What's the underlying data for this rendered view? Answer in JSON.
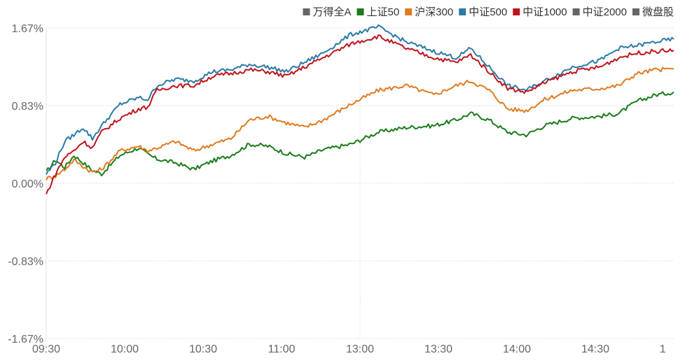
{
  "chart_data": {
    "type": "line",
    "x_ticks": [
      "09:30",
      "10:00",
      "10:30",
      "11:00",
      "13:00",
      "13:30",
      "14:00",
      "14:30",
      "1"
    ],
    "y_ticks": [
      "1.67%",
      "0.83%",
      "0.00%",
      "-0.83%",
      "-1.67%"
    ],
    "ylim": [
      -1.67,
      1.67
    ],
    "grid": "horizontal dotted",
    "legend_placement": "top-right",
    "legend": [
      {
        "name": "万得全A",
        "color": "#666666"
      },
      {
        "name": "上证50",
        "color": "#1a7d1a"
      },
      {
        "name": "沪深300",
        "color": "#e07b20"
      },
      {
        "name": "中证500",
        "color": "#2c7aa6"
      },
      {
        "name": "中证1000",
        "color": "#c0141c"
      },
      {
        "name": "中证2000",
        "color": "#666666"
      },
      {
        "name": "微盘股",
        "color": "#666666"
      }
    ],
    "series": [
      {
        "name": "上证50",
        "color": "#1a7d1a",
        "x": [
          0,
          5,
          10,
          15,
          20,
          25,
          30,
          40,
          50,
          55,
          60,
          70,
          80,
          90,
          100,
          110,
          120,
          130,
          140,
          150,
          165,
          180,
          195,
          210,
          222,
          230,
          240,
          250,
          260,
          270,
          285,
          300,
          310,
          320,
          330,
          340
        ],
        "values": [
          0.12,
          0.25,
          0.17,
          0.3,
          0.22,
          0.14,
          0.1,
          0.3,
          0.38,
          0.31,
          0.26,
          0.22,
          0.15,
          0.24,
          0.3,
          0.42,
          0.4,
          0.32,
          0.28,
          0.36,
          0.42,
          0.55,
          0.6,
          0.62,
          0.68,
          0.75,
          0.68,
          0.55,
          0.52,
          0.62,
          0.7,
          0.72,
          0.75,
          0.88,
          0.95,
          0.98
        ]
      },
      {
        "name": "沪深300",
        "color": "#e07b20",
        "x": [
          0,
          5,
          10,
          15,
          20,
          25,
          30,
          40,
          50,
          55,
          60,
          70,
          80,
          90,
          100,
          110,
          120,
          130,
          140,
          150,
          165,
          180,
          195,
          210,
          222,
          230,
          240,
          250,
          260,
          270,
          285,
          300,
          310,
          320,
          330,
          340
        ],
        "values": [
          0.05,
          0.08,
          0.15,
          0.25,
          0.18,
          0.12,
          0.15,
          0.35,
          0.4,
          0.35,
          0.38,
          0.45,
          0.35,
          0.42,
          0.48,
          0.68,
          0.72,
          0.65,
          0.6,
          0.68,
          0.85,
          1.0,
          1.05,
          0.95,
          1.05,
          1.1,
          1.0,
          0.8,
          0.78,
          0.9,
          1.0,
          1.02,
          1.05,
          1.18,
          1.22,
          1.23
        ]
      },
      {
        "name": "中证500",
        "color": "#2c7aa6",
        "x": [
          0,
          5,
          10,
          15,
          20,
          25,
          30,
          40,
          50,
          55,
          60,
          70,
          80,
          90,
          100,
          110,
          120,
          130,
          140,
          150,
          165,
          180,
          195,
          210,
          222,
          230,
          240,
          250,
          260,
          270,
          285,
          300,
          310,
          320,
          330,
          340
        ],
        "values": [
          0.1,
          0.22,
          0.45,
          0.52,
          0.6,
          0.48,
          0.62,
          0.85,
          0.92,
          0.9,
          1.05,
          1.12,
          1.1,
          1.2,
          1.22,
          1.28,
          1.25,
          1.2,
          1.3,
          1.4,
          1.6,
          1.68,
          1.52,
          1.42,
          1.35,
          1.45,
          1.25,
          1.05,
          1.0,
          1.1,
          1.25,
          1.32,
          1.45,
          1.48,
          1.52,
          1.55
        ]
      },
      {
        "name": "中证1000",
        "color": "#c0141c",
        "x": [
          0,
          5,
          10,
          15,
          20,
          25,
          30,
          40,
          50,
          55,
          60,
          70,
          80,
          90,
          100,
          110,
          120,
          130,
          140,
          150,
          165,
          180,
          195,
          210,
          222,
          230,
          240,
          250,
          260,
          270,
          285,
          300,
          310,
          320,
          330,
          340
        ],
        "values": [
          -0.12,
          0.1,
          0.28,
          0.35,
          0.45,
          0.38,
          0.55,
          0.7,
          0.8,
          0.82,
          1.0,
          1.05,
          1.05,
          1.15,
          1.18,
          1.22,
          1.2,
          1.15,
          1.25,
          1.35,
          1.5,
          1.58,
          1.45,
          1.35,
          1.3,
          1.38,
          1.2,
          1.02,
          0.98,
          1.08,
          1.2,
          1.25,
          1.35,
          1.4,
          1.42,
          1.43
        ]
      }
    ]
  }
}
